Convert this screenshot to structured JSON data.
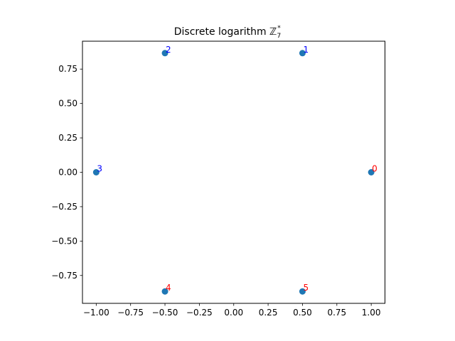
{
  "chart_data": {
    "type": "scatter",
    "title": "Discrete logarithm ℤ",
    "title_sub": "7",
    "title_sup": "*",
    "xlabel": "",
    "ylabel": "",
    "xlim": [
      -1.1,
      1.1
    ],
    "ylim": [
      -0.9526,
      0.9526
    ],
    "xticks": [
      -1.0,
      -0.75,
      -0.5,
      -0.25,
      0.0,
      0.25,
      0.5,
      0.75,
      1.0
    ],
    "xtick_labels": [
      "−1.00",
      "−0.75",
      "−0.50",
      "−0.25",
      "0.00",
      "0.25",
      "0.50",
      "0.75",
      "1.00"
    ],
    "yticks": [
      -0.75,
      -0.5,
      -0.25,
      0.0,
      0.25,
      0.5,
      0.75
    ],
    "ytick_labels": [
      "−0.75",
      "−0.50",
      "−0.25",
      "0.00",
      "0.25",
      "0.50",
      "0.75"
    ],
    "grid": false,
    "marker_color": "#1f77b4",
    "points": [
      {
        "x": 1.0,
        "y": 0.0,
        "label": "0",
        "color": "#ff0000"
      },
      {
        "x": 0.5,
        "y": 0.866,
        "label": "1",
        "color": "#0000ff"
      },
      {
        "x": -0.5,
        "y": 0.866,
        "label": "2",
        "color": "#0000ff"
      },
      {
        "x": -1.0,
        "y": 0.0,
        "label": "3",
        "color": "#0000ff"
      },
      {
        "x": -0.5,
        "y": -0.866,
        "label": "4",
        "color": "#ff0000"
      },
      {
        "x": 0.5,
        "y": -0.866,
        "label": "5",
        "color": "#ff0000"
      }
    ]
  }
}
